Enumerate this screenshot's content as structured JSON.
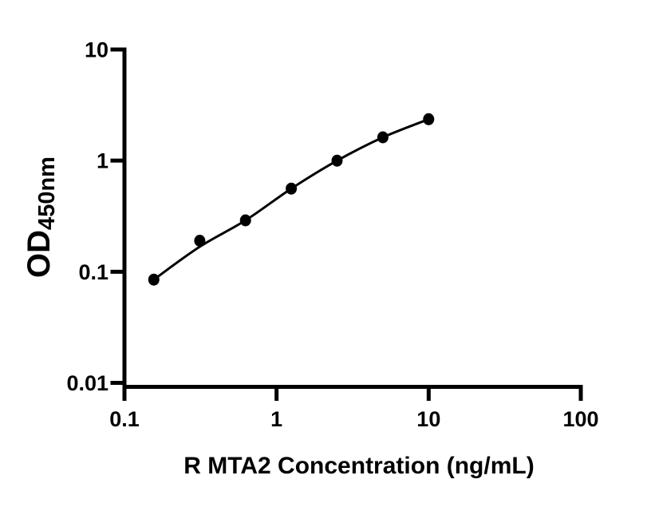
{
  "chart_data": {
    "type": "scatter",
    "subtype": "standard-curve-with-fit-line",
    "title": "",
    "xlabel": "R MTA2 Concentration (ng/mL)",
    "ylabel": "OD450nm",
    "ylabel_main": "OD",
    "ylabel_sub": "450nm",
    "xscale": "log",
    "yscale": "log",
    "xlim": [
      0.1,
      100
    ],
    "ylim": [
      0.01,
      10
    ],
    "grid": false,
    "legend": null,
    "x_ticks": [
      {
        "value": 0.1,
        "label": "0.1"
      },
      {
        "value": 1,
        "label": "1"
      },
      {
        "value": 10,
        "label": "10"
      },
      {
        "value": 100,
        "label": "100"
      }
    ],
    "y_ticks": [
      {
        "value": 10,
        "label": "10"
      },
      {
        "value": 1,
        "label": "1"
      },
      {
        "value": 0.1,
        "label": "0.1"
      },
      {
        "value": 0.01,
        "label": "0.01"
      }
    ],
    "x": [
      0.156,
      0.3125,
      0.625,
      1.25,
      2.5,
      5,
      10
    ],
    "od_values": [
      0.085,
      0.19,
      0.29,
      0.56,
      1.0,
      1.62,
      2.36
    ],
    "fit_od_values": [
      0.085,
      0.168,
      0.29,
      0.56,
      1.0,
      1.62,
      2.36
    ],
    "marker_color": "#000000",
    "line_color": "#000000",
    "axis_color": "#000000",
    "background_color": "#ffffff"
  }
}
